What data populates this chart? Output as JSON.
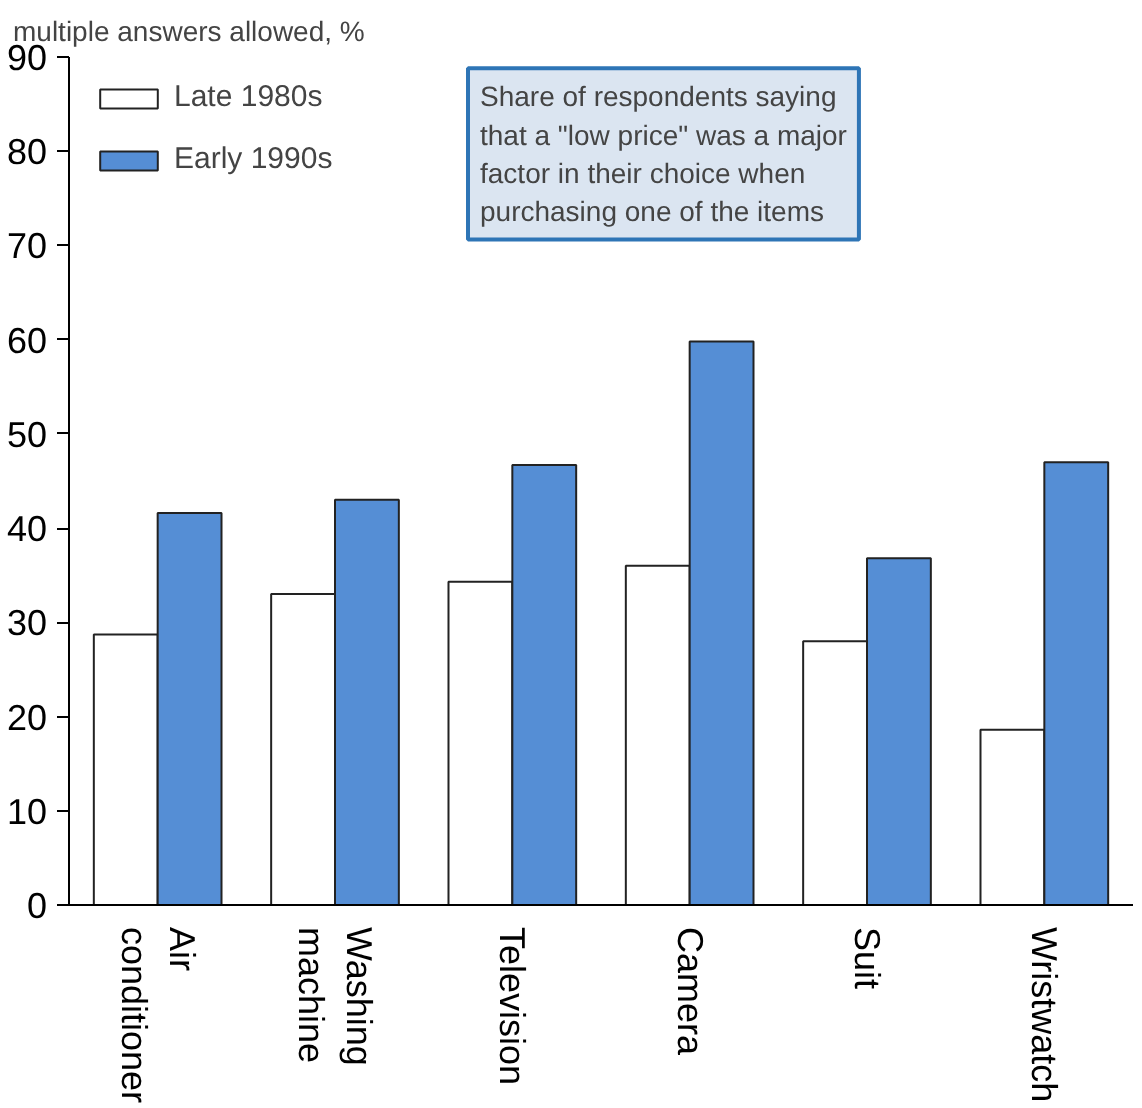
{
  "chart_data": {
    "type": "bar",
    "ylabel": "multiple answers allowed, %",
    "categories": [
      "Air conditioner",
      "Washing machine",
      "Television",
      "Camera",
      "Suit",
      "Wristwatch"
    ],
    "series": [
      {
        "name": "Late 1980s",
        "color": "#ffffff",
        "values": [
          28.7,
          33,
          34.3,
          36,
          28,
          18.6
        ]
      },
      {
        "name": "Early 1990s",
        "color": "#558ed5",
        "values": [
          41.6,
          43,
          46.7,
          59.8,
          36.8,
          47
        ]
      }
    ],
    "ylim": [
      0,
      90
    ],
    "yticks": [
      0,
      10,
      20,
      30,
      40,
      50,
      60,
      70,
      80,
      90
    ],
    "grid": false,
    "legend": "top left",
    "annotations": [
      "Share of respondents saying that a \"low price\" was a major factor in their choice when purchasing one of the items"
    ]
  }
}
